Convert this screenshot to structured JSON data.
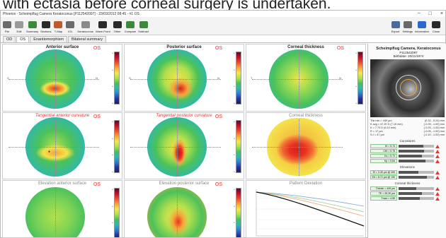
{
  "caption": "with ectasia before corneal surgery is undertaken.",
  "window": {
    "title": "Phoenix - Scheimpflug Camera Keratoconus [P112542097] - 23/03/2012 08:45 - #1 OS",
    "controls": [
      "−",
      "□",
      "×"
    ]
  },
  "toolbar": {
    "left": [
      {
        "label": "File",
        "icon": "file-icon",
        "color": "#6a6a6a"
      },
      {
        "label": "Edit",
        "icon": "edit-icon",
        "color": "#9a9a9a"
      },
      {
        "label": "Summary",
        "icon": "summary-icon",
        "color": "#3a8a3a"
      },
      {
        "label": "Sections",
        "icon": "sections-icon",
        "color": "#2a2a2a"
      },
      {
        "label": "T-Map",
        "icon": "tmap-icon",
        "color": "#c05a2a"
      },
      {
        "label": "IOL",
        "icon": "iol-icon",
        "color": "#6a6a6a"
      },
      {
        "label": "Keratoconus",
        "icon": "keratoconus-icon",
        "color": "#8a8a8a"
      },
      {
        "label": "Wave-Front",
        "icon": "wavefront-icon",
        "color": "#2a2a2a"
      },
      {
        "label": "Other",
        "icon": "more-icon",
        "color": "#2a2a2a"
      },
      {
        "label": "Compare",
        "icon": "compare-icon",
        "color": "#3a8a3a"
      },
      {
        "label": "Subtract",
        "icon": "subtract-icon",
        "color": "#3a8a3a"
      }
    ],
    "right": [
      {
        "label": "Export",
        "icon": "export-icon",
        "color": "#4a6aa0"
      },
      {
        "label": "Settings",
        "icon": "settings-icon",
        "color": "#6a6a6a"
      },
      {
        "label": "Information",
        "icon": "information-icon",
        "color": "#2a6ad0"
      },
      {
        "label": "Close",
        "icon": "close-icon",
        "color": "#2a2a2a"
      }
    ]
  },
  "tabs": [
    "OD",
    "OS",
    "Enantiomorphism",
    "Bilateral summary"
  ],
  "panels": {
    "anterior": {
      "title": "Anterior surface",
      "eye": "OS",
      "side_left": "S",
      "side_right": "N"
    },
    "posterior": {
      "title": "Posterior surface",
      "eye": "OS",
      "side_left": "S",
      "side_right": "N"
    },
    "thickness": {
      "title": "Corneal thickness",
      "eye": "OS",
      "side_left": "T",
      "side_right": "N"
    },
    "tan_anterior": {
      "title": "Tangential anterior curvature",
      "eye": "OS"
    },
    "tan_posterior": {
      "title": "Tangential posterior curvature",
      "eye": "OS"
    },
    "thickness2": {
      "title": "Corneal thickness"
    },
    "elev_anterior": {
      "title": "Elevation anterior surface",
      "eye": "OS"
    },
    "elev_posterior": {
      "title": "Elevation posterior surface",
      "eye": "OS"
    },
    "pattern": {
      "title": "Pattern Deviation"
    }
  },
  "patient": {
    "name": "Scheimpflug Camera, Keratoconus",
    "id": "P112542097",
    "birthdate": "Birthdate: 20/11/1974"
  },
  "measurements": {
    "left": [
      "Thk min = 449 µm",
      "K avg = 47.20 D (7.15 mm)",
      "K = 7.70 D (6.10 mm)",
      "R = 17 µm",
      "S-I = 47 µm"
    ],
    "right": [
      "(0.32, -0.24) mm",
      "(-0.25, -1.00) mm",
      "(-0.25, -1.00) mm",
      "(-0.05, -1.00) mm",
      "(-0.10, -1.00) mm"
    ]
  },
  "curvatures": {
    "title": "Curvatures",
    "items": [
      {
        "label": "Kf = 5.74",
        "level": 0.7
      },
      {
        "label": "CKf = 5.78",
        "level": 0.72
      },
      {
        "label": "Ks = 5.73",
        "level": 0.65
      },
      {
        "label": "Kp = 5.84",
        "level": 0.75
      }
    ]
  },
  "elevations": {
    "title": "Elevations",
    "items": [
      {
        "label": "Ef = 3.35 µm @ 269",
        "level": 0.55
      },
      {
        "label": "Eb = 8.72 µm @ 190",
        "level": 0.8
      }
    ]
  },
  "corneal_thickness": {
    "title": "Corneal thickness",
    "items": [
      {
        "label": "Thkmin = 449 µm",
        "level": 0.5
      },
      {
        "label": "TE = 29.20 µm",
        "level": 0.65
      },
      {
        "label": "Tmax = 4.55",
        "level": 0.6
      }
    ]
  },
  "colors": {
    "map_red": "#e8321e",
    "map_yellow": "#f4e24a",
    "map_green": "#4cc25a",
    "map_blue": "#2a6cd2",
    "os_red": "#e33333"
  }
}
